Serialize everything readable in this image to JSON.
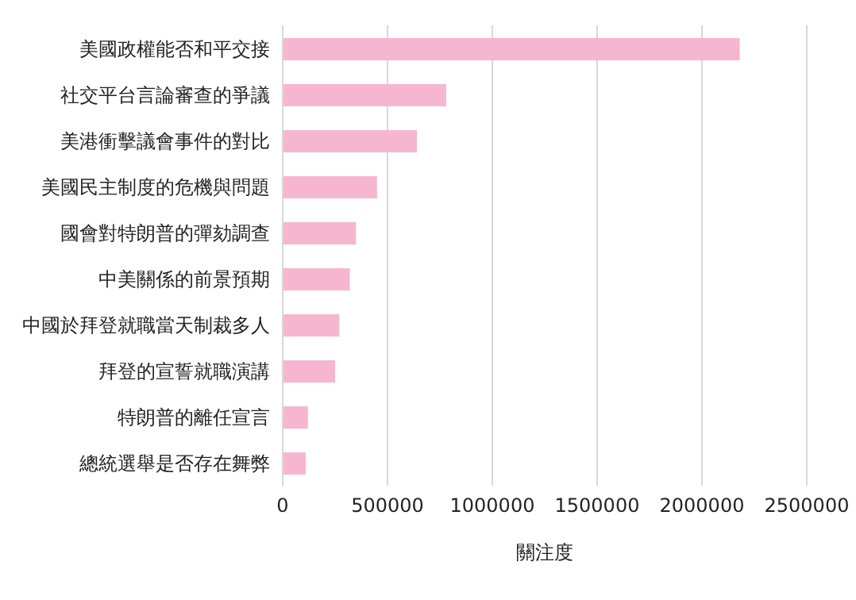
{
  "chart_data": {
    "type": "bar",
    "orientation": "horizontal",
    "categories": [
      "美國政權能否和平交接",
      "社交平台言論審查的爭議",
      "美港衝擊議會事件的對比",
      "美國民主制度的危機與問題",
      "國會對特朗普的彈劾調查",
      "中美關係的前景預期",
      "中國於拜登就職當天制裁多人",
      "拜登的宣誓就職演講",
      "特朗普的離任宣言",
      "總統選舉是否存在舞弊"
    ],
    "values": [
      2180000,
      780000,
      640000,
      450000,
      350000,
      320000,
      270000,
      250000,
      120000,
      110000
    ],
    "color": "#f7b6cf",
    "xlabel": "關注度",
    "xlim": [
      0,
      2500000
    ],
    "xticks": [
      0,
      500000,
      1000000,
      1500000,
      2000000,
      2500000
    ],
    "grid": "x"
  }
}
